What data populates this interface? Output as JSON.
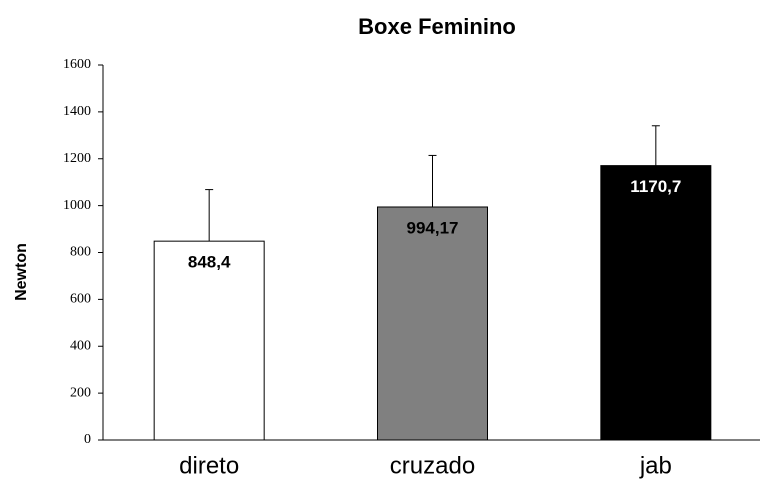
{
  "chart_data": {
    "type": "bar",
    "title": "Boxe Feminino",
    "y_label": "Newton",
    "categories": [
      "direto",
      "cruzado",
      "jab"
    ],
    "values": [
      848.4,
      994.17,
      1170.7
    ],
    "value_labels": [
      "848,4",
      "994,17",
      "1170,7"
    ],
    "errors": [
      220,
      220,
      170
    ],
    "colors": [
      "#ffffff",
      "#808080",
      "#000000"
    ],
    "value_label_colors": [
      "#000000",
      "#000000",
      "#ffffff"
    ],
    "ylim": [
      0,
      1600
    ],
    "yticks": [
      0,
      200,
      400,
      600,
      800,
      1000,
      1200,
      1400,
      1600
    ],
    "grid": false
  }
}
